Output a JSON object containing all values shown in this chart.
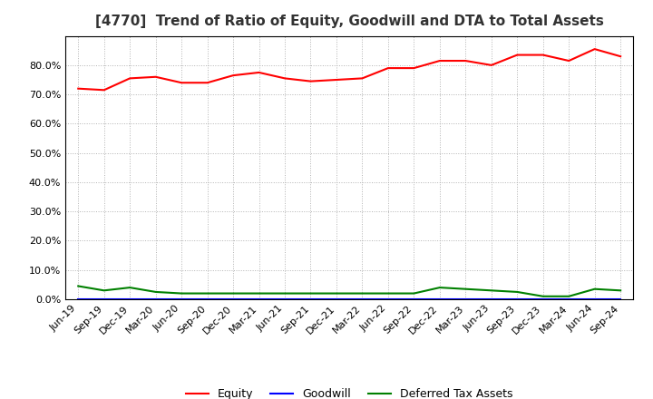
{
  "title": "[4770]  Trend of Ratio of Equity, Goodwill and DTA to Total Assets",
  "labels": [
    "Jun-19",
    "Sep-19",
    "Dec-19",
    "Mar-20",
    "Jun-20",
    "Sep-20",
    "Dec-20",
    "Mar-21",
    "Jun-21",
    "Sep-21",
    "Dec-21",
    "Mar-22",
    "Jun-22",
    "Sep-22",
    "Dec-22",
    "Mar-23",
    "Jun-23",
    "Sep-23",
    "Dec-23",
    "Mar-24",
    "Jun-24",
    "Sep-24"
  ],
  "equity": [
    72.0,
    71.5,
    75.5,
    76.0,
    74.0,
    74.0,
    76.5,
    77.5,
    75.5,
    74.5,
    75.0,
    75.5,
    79.0,
    79.0,
    81.5,
    81.5,
    80.0,
    83.5,
    83.5,
    81.5,
    85.5,
    83.0
  ],
  "goodwill": [
    0.0,
    0.0,
    0.0,
    0.0,
    0.0,
    0.0,
    0.0,
    0.0,
    0.0,
    0.0,
    0.0,
    0.0,
    0.0,
    0.0,
    0.0,
    0.0,
    0.0,
    0.0,
    0.0,
    0.0,
    0.0,
    0.0
  ],
  "dta": [
    4.5,
    3.0,
    4.0,
    2.5,
    2.0,
    2.0,
    2.0,
    2.0,
    2.0,
    2.0,
    2.0,
    2.0,
    2.0,
    2.0,
    4.0,
    3.5,
    3.0,
    2.5,
    1.0,
    1.0,
    3.5,
    3.0
  ],
  "equity_color": "#FF0000",
  "goodwill_color": "#0000FF",
  "dta_color": "#008000",
  "background_color": "#FFFFFF",
  "plot_bg_color": "#FFFFFF",
  "grid_color": "#AAAAAA",
  "ylim": [
    0.0,
    90.0
  ],
  "yticks": [
    0.0,
    10.0,
    20.0,
    30.0,
    40.0,
    50.0,
    60.0,
    70.0,
    80.0
  ],
  "legend_labels": [
    "Equity",
    "Goodwill",
    "Deferred Tax Assets"
  ],
  "title_fontsize": 11,
  "tick_fontsize": 8,
  "legend_fontsize": 9
}
